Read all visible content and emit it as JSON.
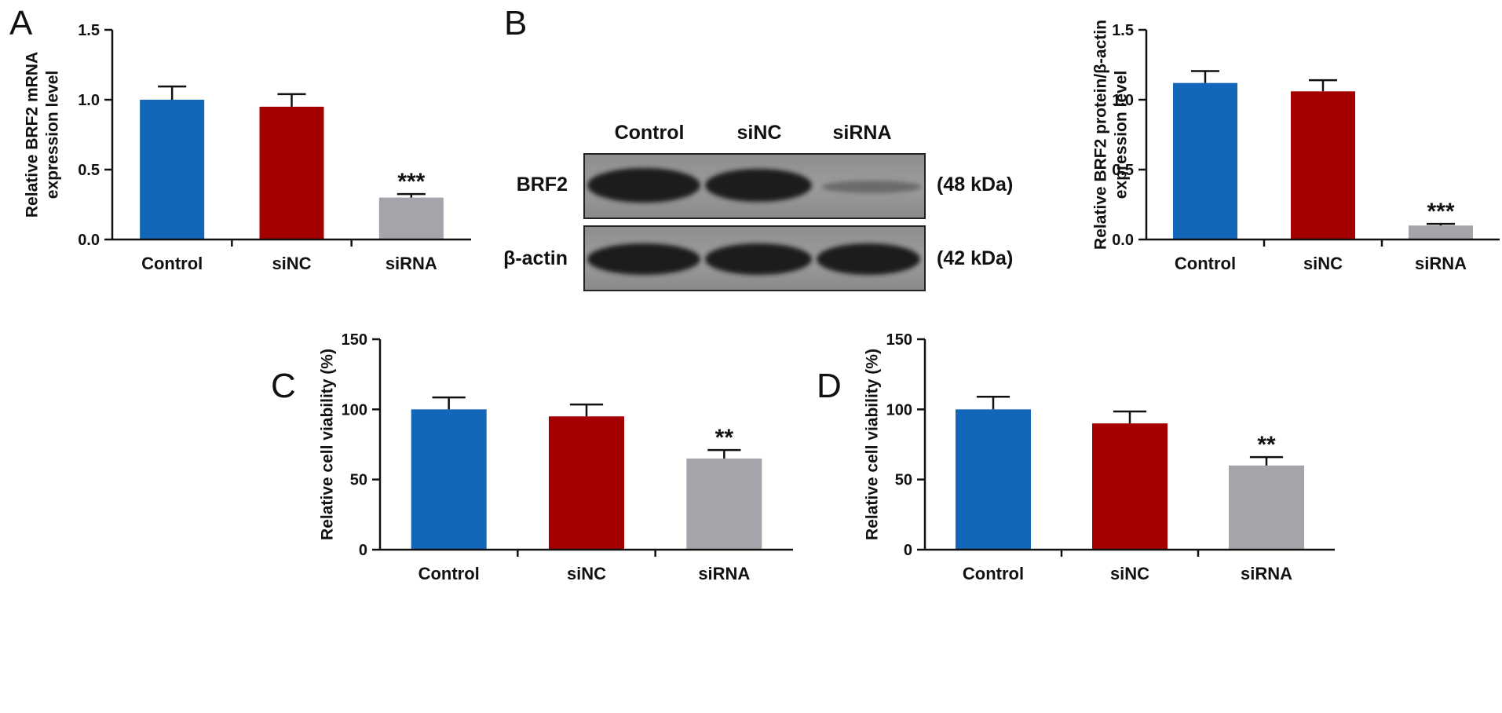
{
  "colors": {
    "Control": "#1267b8",
    "siNC": "#a50000",
    "siRNA": "#a3a5aa"
  },
  "chart_data": [
    {
      "id": "A",
      "panel_label": "A",
      "type": "bar",
      "categories": [
        "Control",
        "siNC",
        "siRNA"
      ],
      "values": [
        1.0,
        0.95,
        0.3
      ],
      "errors": [
        0.095,
        0.09,
        0.025
      ],
      "significance": [
        "",
        "",
        "***"
      ],
      "ylabel_lines": [
        "Relative BRF2 mRNA",
        "expression level"
      ],
      "ylim": [
        0,
        1.5
      ],
      "yticks": [
        0.0,
        0.5,
        1.0,
        1.5
      ],
      "ytick_labels": [
        "0.0",
        "0.5",
        "1.0",
        "1.5"
      ],
      "grid": false,
      "legend": "none"
    },
    {
      "id": "B",
      "panel_label": "",
      "type": "bar",
      "categories": [
        "Control",
        "siNC",
        "siRNA"
      ],
      "values": [
        1.12,
        1.06,
        0.1
      ],
      "errors": [
        0.085,
        0.08,
        0.012
      ],
      "significance": [
        "",
        "",
        "***"
      ],
      "ylabel_lines": [
        "Relative BRF2 protein/β-actin",
        "expression level"
      ],
      "ylim": [
        0,
        1.5
      ],
      "yticks": [
        0.0,
        0.5,
        1.0,
        1.5
      ],
      "ytick_labels": [
        "0.0",
        "0.5",
        "1.0",
        "1.5"
      ],
      "grid": false,
      "legend": "none"
    },
    {
      "id": "C",
      "panel_label": "C",
      "type": "bar",
      "categories": [
        "Control",
        "siNC",
        "siRNA"
      ],
      "values": [
        100,
        95,
        65
      ],
      "errors": [
        8.5,
        8.5,
        6
      ],
      "significance": [
        "",
        "",
        "**"
      ],
      "ylabel_lines": [
        "Relative cell viability (%)"
      ],
      "ylim": [
        0,
        150
      ],
      "yticks": [
        0,
        50,
        100,
        150
      ],
      "ytick_labels": [
        "0",
        "50",
        "100",
        "150"
      ],
      "grid": false,
      "legend": "none"
    },
    {
      "id": "D",
      "panel_label": "D",
      "type": "bar",
      "categories": [
        "Control",
        "siNC",
        "siRNA"
      ],
      "values": [
        100,
        90,
        60
      ],
      "errors": [
        9,
        8.5,
        6
      ],
      "significance": [
        "",
        "",
        "**"
      ],
      "ylabel_lines": [
        "Relative cell viability (%)"
      ],
      "ylim": [
        0,
        150
      ],
      "yticks": [
        0,
        50,
        100,
        150
      ],
      "ytick_labels": [
        "0",
        "50",
        "100",
        "150"
      ],
      "grid": false,
      "legend": "none"
    }
  ],
  "blot": {
    "panel_label": "B",
    "lanes": [
      "Control",
      "siNC",
      "siRNA"
    ],
    "rows": [
      {
        "label": "BRF2",
        "kda": "(48 kDa)"
      },
      {
        "label": "β-actin",
        "kda": "(42 kDa)"
      }
    ]
  }
}
